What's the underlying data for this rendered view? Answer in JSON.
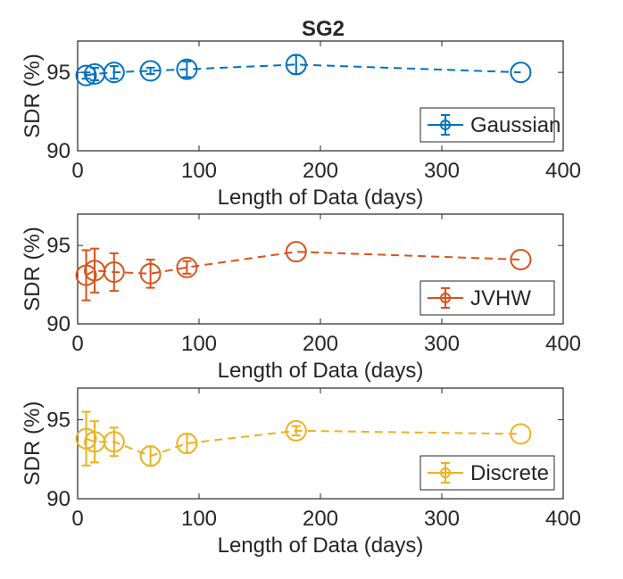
{
  "chart_data": {
    "type": "line",
    "title": "SG2",
    "panels": [
      {
        "name": "gaussian",
        "series_name": "Gaussian",
        "color": "#0072BD",
        "xlabel": "Length of Data (days)",
        "ylabel": "SDR (%)",
        "xlim": [
          0,
          400
        ],
        "ylim": [
          90,
          97
        ],
        "xticks": [
          0,
          100,
          200,
          300,
          400
        ],
        "yticks": [
          90,
          95
        ],
        "legend_position": "bottom-right",
        "x": [
          7,
          14,
          30,
          60,
          90,
          180,
          365
        ],
        "y": [
          94.8,
          94.9,
          95.0,
          95.1,
          95.2,
          95.5,
          95.0
        ],
        "err": [
          0.2,
          0.4,
          0.4,
          0.2,
          0.5,
          0.6,
          0.0
        ]
      },
      {
        "name": "jvhw",
        "series_name": "JVHW",
        "color": "#D95319",
        "xlabel": "Length of Data (days)",
        "ylabel": "SDR (%)",
        "xlim": [
          0,
          400
        ],
        "ylim": [
          90,
          97
        ],
        "xticks": [
          0,
          100,
          200,
          300,
          400
        ],
        "yticks": [
          90,
          95
        ],
        "legend_position": "bottom-right",
        "x": [
          7,
          14,
          30,
          60,
          90,
          180,
          365
        ],
        "y": [
          93.1,
          93.4,
          93.3,
          93.2,
          93.6,
          94.6,
          94.1
        ],
        "err": [
          1.6,
          1.4,
          1.2,
          0.9,
          0.4,
          0.0,
          0.0
        ]
      },
      {
        "name": "discrete",
        "series_name": "Discrete",
        "color": "#EDB120",
        "xlabel": "Length of Data (days)",
        "ylabel": "SDR (%)",
        "xlim": [
          0,
          400
        ],
        "ylim": [
          90,
          97
        ],
        "xticks": [
          0,
          100,
          200,
          300,
          400
        ],
        "yticks": [
          90,
          95
        ],
        "legend_position": "bottom-right",
        "x": [
          7,
          14,
          30,
          60,
          90,
          180,
          365
        ],
        "y": [
          93.8,
          93.6,
          93.6,
          92.7,
          93.5,
          94.3,
          94.1
        ],
        "err": [
          1.7,
          1.3,
          0.9,
          0.6,
          0.6,
          0.3,
          0.0
        ]
      }
    ]
  }
}
